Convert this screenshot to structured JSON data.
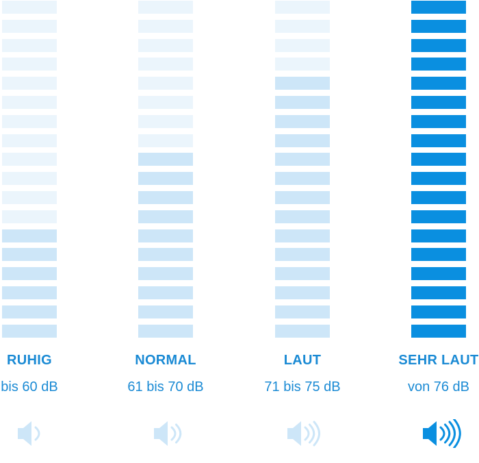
{
  "colors": {
    "active": "#0a8fe0",
    "bar_lit": "#cde6f8",
    "bar_unlit": "#ebf5fc",
    "label": "#1a8ad4",
    "icon_active": "#0a8fe0",
    "icon_muted": "#cde6f8"
  },
  "total_bars": 18,
  "levels": [
    {
      "title": "RUHIG",
      "range": "bis 60 dB",
      "lit_bars": 6,
      "active": false,
      "icon": "speaker-one-wave-icon",
      "waves": 1
    },
    {
      "title": "NORMAL",
      "range": "61 bis 70 dB",
      "lit_bars": 10,
      "active": false,
      "icon": "speaker-two-waves-icon",
      "waves": 2
    },
    {
      "title": "LAUT",
      "range": "71 bis 75 dB",
      "lit_bars": 14,
      "active": false,
      "icon": "speaker-three-waves-icon",
      "waves": 3
    },
    {
      "title": "SEHR LAUT",
      "range": "von 76 dB",
      "lit_bars": 18,
      "active": true,
      "icon": "speaker-four-waves-icon",
      "waves": 4
    }
  ]
}
